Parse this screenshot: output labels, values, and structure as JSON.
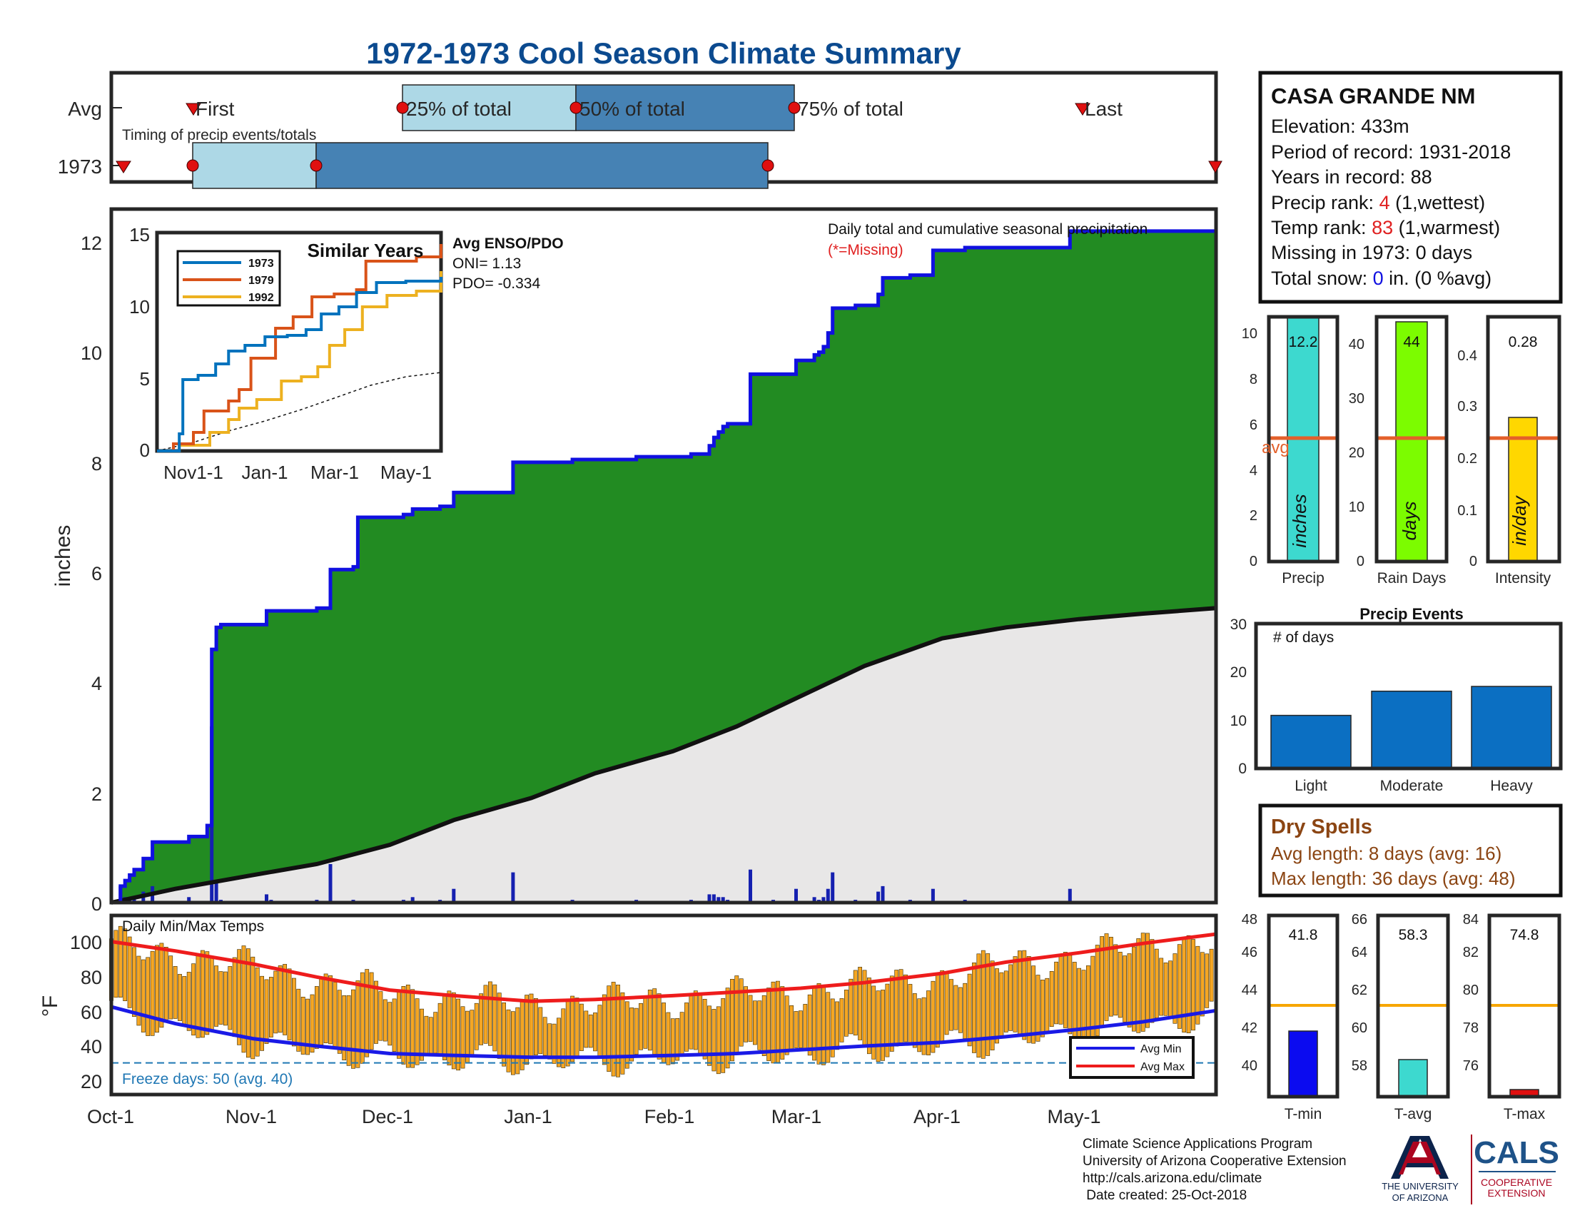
{
  "title": "1972-1973 Cool Season Climate Summary",
  "colors": {
    "title_blue": "#0b4a8f",
    "green": "#228b22",
    "cum_line": "#1010e0",
    "avg_fill": "#e8e7e7",
    "daily_bar": "#1520b0",
    "red_missing": "#e02020",
    "q_light": "#add8e6",
    "q_dark": "#4682b4",
    "orange_bar": "#f5a623",
    "avg_max_line": "#ee1c1c",
    "avg_min_line": "#1a1ae6",
    "freeze_line": "#1f77b4",
    "precip_bar": "#3dd9cf",
    "raindays_bar": "#7cfc00",
    "intensity_bar": "#ffd700",
    "avg_ref_line": "#e4602a",
    "events_bar": "#0b6fc2",
    "tmin_bar": "#0b0bf0",
    "tavg_bar": "#3dd9cf",
    "tmax_bar": "#e01010",
    "temp_ref_line": "#f7a600",
    "dry_spell_text": "#8b4513",
    "ua_red": "#ab0520",
    "ua_navy": "#0c234b",
    "cals_blue": "#1e5288"
  },
  "timing": {
    "caption": "Timing of precip events/totals",
    "row_labels": [
      "Avg",
      "1973"
    ],
    "avg_markers": {
      "first": "First",
      "p25": "25% of total",
      "p50": "50% of total",
      "p75": "75% of total",
      "last": "Last"
    }
  },
  "info_box": {
    "station": "CASA GRANDE NM",
    "elevation": "Elevation: 433m",
    "period": "Period of record: 1931-2018",
    "years": "Years in record: 88",
    "precip_rank_prefix": "Precip rank: ",
    "precip_rank_value": "4",
    "precip_rank_suffix": " (1,wettest)",
    "temp_rank_prefix": "Temp rank: ",
    "temp_rank_value": "83",
    "temp_rank_suffix": " (1,warmest)",
    "missing": "Missing in 1973: 0 days",
    "snow_prefix": "Total snow: ",
    "snow_value": "0",
    "snow_suffix": " in. (0 %avg)"
  },
  "main_chart": {
    "ylabel": "inches",
    "yticks": [
      "0",
      "2",
      "4",
      "6",
      "8",
      "10",
      "12"
    ],
    "legend_line1": "Daily total and cumulative seasonal precipitation",
    "legend_line2": "(*=Missing)",
    "enso_title": "Avg ENSO/PDO",
    "oni": "ONI= 1.13",
    "pdo": "PDO= -0.334"
  },
  "temp_chart": {
    "caption": "Daily Min/Max Temps",
    "ylabel": "°F",
    "yticks": [
      "20",
      "40",
      "60",
      "80",
      "100"
    ],
    "freeze": "Freeze days: 50 (avg. 40)",
    "legend_min": "Avg Min",
    "legend_max": "Avg Max"
  },
  "x_ticks": [
    "Oct-1",
    "Nov-1",
    "Dec-1",
    "Jan-1",
    "Feb-1",
    "Mar-1",
    "Apr-1",
    "May-1"
  ],
  "inset": {
    "title": "Similar Years",
    "yticks": [
      "0",
      "5",
      "10",
      "15"
    ],
    "xticks": [
      "Nov1-1",
      "Jan-1",
      "Mar-1",
      "May-1"
    ],
    "legend": [
      "1973",
      "1979",
      "1992"
    ]
  },
  "summary_bars": {
    "precip": {
      "label": "Precip",
      "value_text": "12.2",
      "unit": "inches",
      "avg_text": "avg",
      "yticks": [
        "0",
        "2",
        "4",
        "6",
        "8",
        "10"
      ]
    },
    "raindays": {
      "label": "Rain Days",
      "value_text": "44",
      "unit": "days",
      "yticks": [
        "0",
        "10",
        "20",
        "30",
        "40"
      ]
    },
    "intensity": {
      "label": "Intensity",
      "value_text": "0.28",
      "unit": "in/day",
      "yticks": [
        "0",
        "0.1",
        "0.2",
        "0.3",
        "0.4"
      ]
    }
  },
  "events": {
    "title": "Precip Events",
    "caption": "# of days",
    "yticks": [
      "0",
      "10",
      "20",
      "30"
    ],
    "categories": [
      "Light",
      "Moderate",
      "Heavy"
    ]
  },
  "dry_spells": {
    "title": "Dry Spells",
    "avg_length": "Avg length: 8 days (avg: 16)",
    "max_length": "Max length: 36 days (avg: 48)"
  },
  "temp_bars": {
    "tmin": {
      "label": "T-min",
      "value_text": "41.8",
      "yticks": [
        "40",
        "42",
        "44",
        "46",
        "48"
      ]
    },
    "tavg": {
      "label": "T-avg",
      "value_text": "58.3",
      "yticks": [
        "58",
        "60",
        "62",
        "64",
        "66"
      ]
    },
    "tmax": {
      "label": "T-max",
      "value_text": "74.8",
      "yticks": [
        "76",
        "78",
        "80",
        "82",
        "84"
      ]
    }
  },
  "footer": {
    "line1": "Climate Science Applications Program",
    "line2": "University of Arizona Cooperative Extension",
    "line3": "http://cals.arizona.edu/climate",
    "line4": " Date created: 25-Oct-2018",
    "ua_line1": "THE UNIVERSITY",
    "ua_line2": "OF ARIZONA",
    "cals": "CALS",
    "cals_sub1": "COOPERATIVE",
    "cals_sub2": "EXTENSION"
  },
  "chart_data": [
    {
      "type": "area",
      "title": "Daily total and cumulative seasonal precipitation",
      "ylabel": "inches",
      "ylim": [
        0,
        12.5
      ],
      "xlim": [
        "Oct-1",
        "Jun-1"
      ],
      "series": [
        {
          "name": "1973",
          "x": [
            "10-01",
            "10-03",
            "10-04",
            "10-05",
            "10-06",
            "10-08",
            "10-10",
            "10-18",
            "10-22",
            "10-23",
            "10-24",
            "10-25",
            "11-04",
            "11-05",
            "11-15",
            "11-18",
            "11-23",
            "11-24",
            "11-30",
            "12-04",
            "12-06",
            "12-12",
            "12-15",
            "12-24",
            "12-28",
            "01-10",
            "01-24",
            "02-05",
            "02-09",
            "02-10",
            "02-11",
            "02-12",
            "02-13",
            "02-18",
            "02-23",
            "02-28",
            "03-04",
            "03-05",
            "03-06",
            "03-07",
            "03-08",
            "03-13",
            "03-18",
            "03-19",
            "03-25",
            "03-30",
            "04-06",
            "04-29",
            "05-31"
          ],
          "y": [
            0.0,
            0.3,
            0.4,
            0.5,
            0.6,
            0.8,
            1.1,
            1.2,
            1.4,
            4.6,
            5.0,
            5.05,
            5.3,
            5.3,
            5.35,
            6.05,
            6.1,
            7.0,
            7.0,
            7.05,
            7.15,
            7.2,
            7.45,
            7.45,
            8.0,
            8.05,
            8.1,
            8.15,
            8.3,
            8.45,
            8.55,
            8.65,
            8.7,
            9.6,
            9.6,
            9.85,
            9.95,
            10.0,
            10.1,
            10.35,
            10.8,
            10.85,
            11.05,
            11.35,
            11.4,
            11.85,
            11.9,
            12.2,
            12.2
          ]
        },
        {
          "name": "Avg",
          "x": [
            "10-01",
            "10-15",
            "11-01",
            "11-15",
            "12-01",
            "12-15",
            "01-01",
            "01-15",
            "02-01",
            "02-15",
            "03-01",
            "03-15",
            "04-01",
            "04-15",
            "05-01",
            "05-15",
            "05-31"
          ],
          "y": [
            0.0,
            0.25,
            0.5,
            0.7,
            1.05,
            1.5,
            1.9,
            2.35,
            2.75,
            3.2,
            3.75,
            4.3,
            4.8,
            5.0,
            5.15,
            5.25,
            5.35
          ]
        }
      ],
      "daily": {
        "x": [
          "10-03",
          "10-04",
          "10-05",
          "10-06",
          "10-08",
          "10-10",
          "10-18",
          "10-23",
          "10-24",
          "10-25",
          "11-04",
          "11-05",
          "11-15",
          "11-18",
          "11-23",
          "12-04",
          "12-06",
          "12-12",
          "12-15",
          "12-28",
          "01-10",
          "01-24",
          "02-05",
          "02-09",
          "02-10",
          "02-11",
          "02-12",
          "02-13",
          "02-18",
          "02-23",
          "02-28",
          "03-04",
          "03-05",
          "03-06",
          "03-07",
          "03-08",
          "03-13",
          "03-18",
          "03-19",
          "03-25",
          "03-30",
          "04-06",
          "04-29"
        ],
        "y": [
          0.3,
          0.1,
          0.1,
          0.1,
          0.2,
          0.3,
          0.1,
          3.2,
          0.4,
          0.05,
          0.15,
          0.05,
          0.05,
          0.7,
          0.05,
          0.05,
          0.1,
          0.05,
          0.25,
          0.55,
          0.05,
          0.05,
          0.05,
          0.15,
          0.15,
          0.1,
          0.1,
          0.05,
          0.6,
          0.05,
          0.25,
          0.1,
          0.05,
          0.1,
          0.25,
          0.55,
          0.05,
          0.2,
          0.3,
          0.05,
          0.25,
          0.05,
          0.25
        ]
      }
    },
    {
      "type": "line",
      "title": "Similar Years",
      "ylim": [
        0,
        15
      ],
      "series": [
        {
          "name": "1973",
          "x": [
            "10-01",
            "10-20",
            "10-23",
            "11-05",
            "11-20",
            "12-01",
            "12-15",
            "01-01",
            "01-20",
            "02-05",
            "02-18",
            "03-05",
            "03-20",
            "04-06",
            "05-01",
            "05-31"
          ],
          "y": [
            0,
            1.2,
            5.0,
            5.3,
            6.1,
            7.0,
            7.4,
            8.0,
            8.1,
            8.5,
            9.6,
            10.1,
            11.1,
            11.8,
            11.9,
            12.2
          ]
        },
        {
          "name": "1979",
          "x": [
            "10-01",
            "10-15",
            "11-01",
            "11-10",
            "12-01",
            "12-10",
            "12-20",
            "01-10",
            "01-25",
            "02-10",
            "03-01",
            "03-20",
            "03-28",
            "04-15",
            "05-10",
            "05-31"
          ],
          "y": [
            0,
            0.5,
            1.3,
            2.8,
            3.5,
            4.3,
            6.5,
            8.6,
            9.4,
            10.8,
            11.0,
            11.3,
            13.3,
            13.3,
            13.6,
            14.5
          ]
        },
        {
          "name": "1992",
          "x": [
            "10-01",
            "10-20",
            "11-15",
            "12-01",
            "12-10",
            "12-25",
            "01-15",
            "02-01",
            "02-15",
            "02-25",
            "03-10",
            "03-25",
            "04-15",
            "05-10",
            "05-31"
          ],
          "y": [
            0,
            0.4,
            1.3,
            2.2,
            3.0,
            3.6,
            4.9,
            5.2,
            5.9,
            7.4,
            8.5,
            10.1,
            10.9,
            11.2,
            12.6
          ]
        },
        {
          "name": "Avg",
          "x": [
            "10-01",
            "11-01",
            "12-01",
            "01-01",
            "02-01",
            "03-01",
            "04-01",
            "05-01",
            "05-31"
          ],
          "y": [
            0,
            0.6,
            1.4,
            2.1,
            2.9,
            3.7,
            4.6,
            5.2,
            5.5
          ]
        }
      ]
    },
    {
      "type": "bar",
      "title": "Daily Min/Max Temps",
      "ylabel": "°F",
      "ylim": [
        15,
        110
      ],
      "series": [
        {
          "name": "Avg Max",
          "x": [
            "10-01",
            "10-15",
            "11-01",
            "11-15",
            "12-01",
            "12-15",
            "01-01",
            "01-15",
            "02-01",
            "02-15",
            "03-01",
            "03-15",
            "04-01",
            "04-15",
            "05-01",
            "05-15",
            "05-31"
          ],
          "y": [
            97,
            92,
            85,
            78,
            71,
            68,
            65,
            66,
            68,
            70,
            72,
            75,
            80,
            86,
            91,
            96,
            101
          ]
        },
        {
          "name": "Avg Min",
          "x": [
            "10-01",
            "10-15",
            "11-01",
            "11-15",
            "12-01",
            "12-15",
            "01-01",
            "01-15",
            "02-01",
            "02-15",
            "03-01",
            "03-15",
            "04-01",
            "04-15",
            "05-01",
            "05-15",
            "05-31"
          ],
          "y": [
            62,
            53,
            45,
            41,
            37,
            36,
            35,
            35,
            36,
            37,
            39,
            41,
            43,
            46,
            50,
            54,
            60
          ]
        },
        {
          "name": "Freeze",
          "x": [
            "10-01",
            "05-31"
          ],
          "y": [
            32,
            32
          ]
        }
      ]
    },
    {
      "type": "bar",
      "categories": [
        "Precip",
        "Rain Days",
        "Intensity"
      ],
      "values": [
        12.2,
        44,
        0.28
      ],
      "averages": [
        5.35,
        22.5,
        0.235
      ],
      "ylims": [
        [
          0,
          10.6
        ],
        [
          0,
          45
        ],
        [
          0,
          0.47
        ]
      ]
    },
    {
      "type": "bar",
      "title": "Precip Events",
      "categories": [
        "Light",
        "Moderate",
        "Heavy"
      ],
      "values": [
        11,
        16,
        17
      ],
      "ylim": [
        0,
        30
      ]
    },
    {
      "type": "bar",
      "categories": [
        "T-min",
        "T-avg",
        "T-max"
      ],
      "values": [
        41.8,
        58.3,
        74.8
      ],
      "averages": [
        43.2,
        61.3,
        79.3
      ],
      "ylims": [
        [
          38.5,
          48
        ],
        [
          56.5,
          66
        ],
        [
          74.5,
          84
        ]
      ]
    }
  ]
}
